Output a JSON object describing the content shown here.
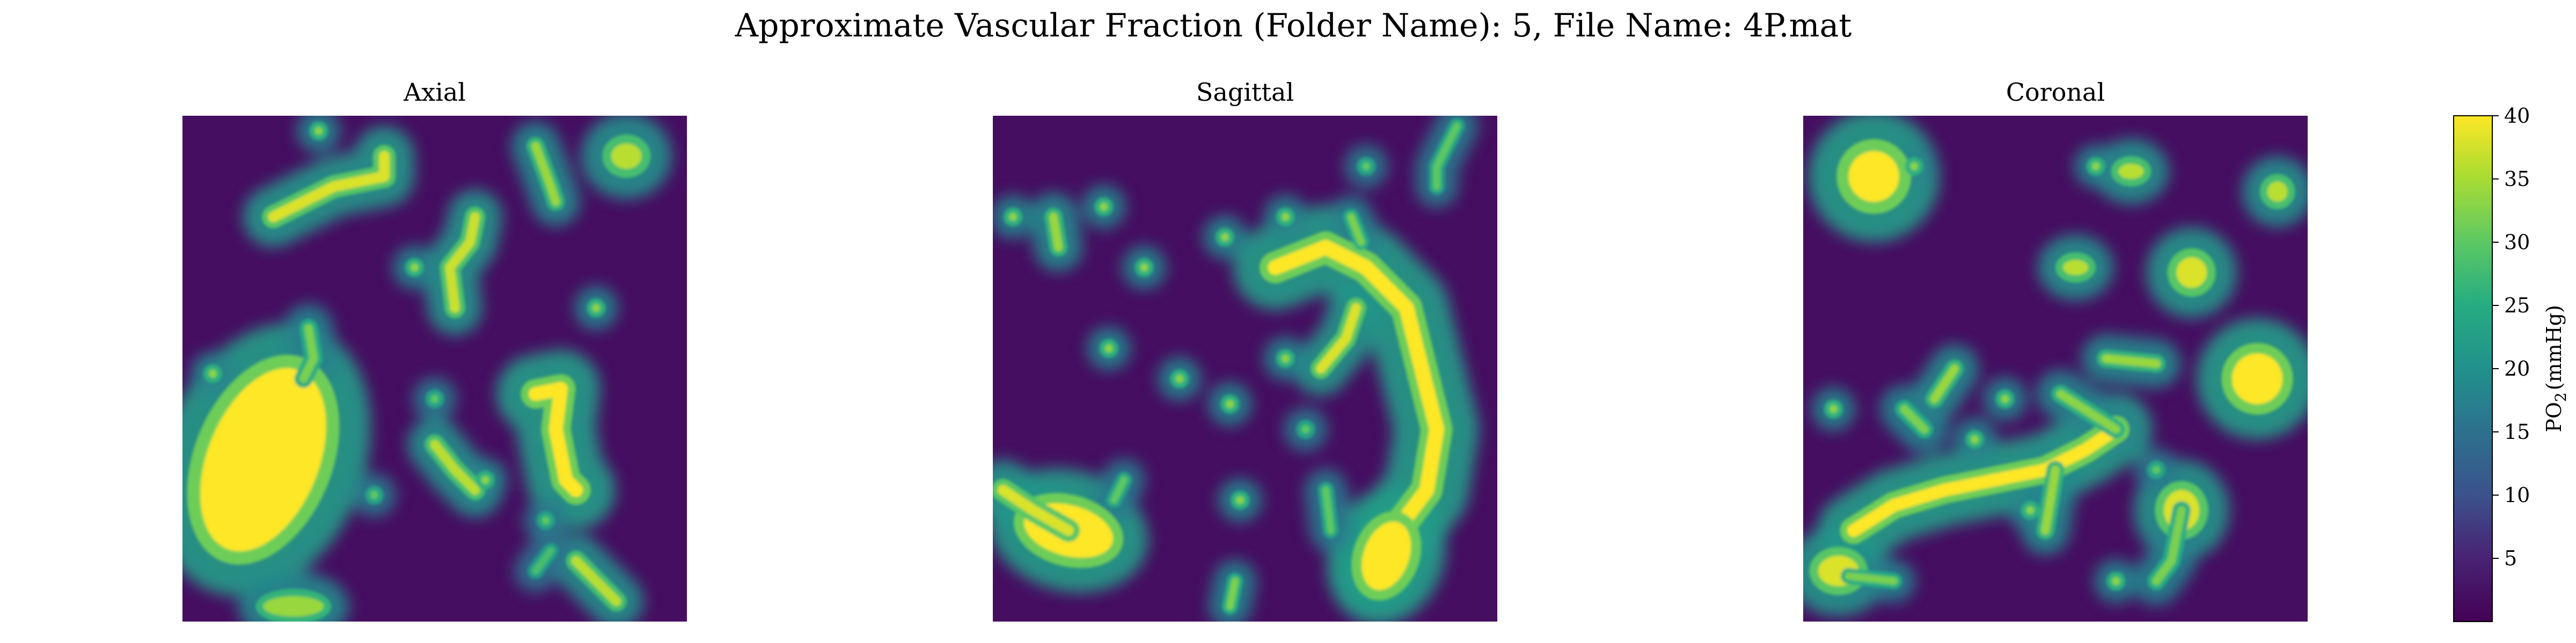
{
  "chart_data": {
    "type": "heatmap",
    "suptitle": "Approximate Vascular Fraction (Folder Name): 5, File Name: 4P.mat",
    "panels": [
      {
        "title": "Axial",
        "background": 2,
        "vessels": [
          {
            "kind": "line",
            "points": [
              [
                0.18,
                0.2
              ],
              [
                0.3,
                0.14
              ],
              [
                0.4,
                0.12
              ],
              [
                0.4,
                0.08
              ]
            ],
            "po2": 38,
            "halo": 0.05
          },
          {
            "kind": "line",
            "points": [
              [
                0.54,
                0.38
              ],
              [
                0.53,
                0.3
              ],
              [
                0.57,
                0.25
              ],
              [
                0.58,
                0.2
              ]
            ],
            "po2": 37,
            "halo": 0.045
          },
          {
            "kind": "line",
            "points": [
              [
                0.7,
                0.06
              ],
              [
                0.73,
                0.14
              ],
              [
                0.74,
                0.17
              ]
            ],
            "po2": 34,
            "halo": 0.04
          },
          {
            "kind": "blob",
            "x": 0.88,
            "y": 0.08,
            "rx": 0.03,
            "ry": 0.025,
            "po2": 36,
            "halo": 0.06
          },
          {
            "kind": "blob",
            "x": 0.16,
            "y": 0.68,
            "rx": 0.11,
            "ry": 0.19,
            "rot": 22,
            "po2": 40,
            "halo": 0.09
          },
          {
            "kind": "line",
            "points": [
              [
                0.24,
                0.52
              ],
              [
                0.26,
                0.48
              ],
              [
                0.25,
                0.42
              ]
            ],
            "po2": 32,
            "halo": 0.04
          },
          {
            "kind": "line",
            "points": [
              [
                0.7,
                0.55
              ],
              [
                0.75,
                0.54
              ],
              [
                0.74,
                0.62
              ],
              [
                0.76,
                0.72
              ],
              [
                0.78,
                0.74
              ]
            ],
            "po2": 40,
            "halo": 0.065
          },
          {
            "kind": "line",
            "points": [
              [
                0.5,
                0.65
              ],
              [
                0.54,
                0.7
              ],
              [
                0.58,
                0.74
              ]
            ],
            "po2": 36,
            "halo": 0.045
          },
          {
            "kind": "line",
            "points": [
              [
                0.78,
                0.88
              ],
              [
                0.82,
                0.92
              ],
              [
                0.86,
                0.96
              ]
            ],
            "po2": 36,
            "halo": 0.045
          },
          {
            "kind": "line",
            "points": [
              [
                0.7,
                0.9
              ],
              [
                0.73,
                0.86
              ]
            ],
            "po2": 28,
            "halo": 0.035
          },
          {
            "kind": "blob",
            "x": 0.22,
            "y": 0.97,
            "rx": 0.06,
            "ry": 0.02,
            "po2": 34,
            "halo": 0.05
          },
          {
            "kind": "dot",
            "x": 0.27,
            "y": 0.03,
            "po2": 33
          },
          {
            "kind": "dot",
            "x": 0.46,
            "y": 0.3,
            "po2": 33
          },
          {
            "kind": "dot",
            "x": 0.06,
            "y": 0.51,
            "po2": 33
          },
          {
            "kind": "dot",
            "x": 0.82,
            "y": 0.38,
            "po2": 33
          },
          {
            "kind": "dot",
            "x": 0.6,
            "y": 0.72,
            "po2": 33
          },
          {
            "kind": "dot",
            "x": 0.38,
            "y": 0.75,
            "po2": 30
          },
          {
            "kind": "dot",
            "x": 0.72,
            "y": 0.8,
            "po2": 30
          },
          {
            "kind": "dot",
            "x": 0.5,
            "y": 0.56,
            "po2": 30
          }
        ]
      },
      {
        "title": "Sagittal",
        "background": 2,
        "vessels": [
          {
            "kind": "line",
            "points": [
              [
                0.56,
                0.3
              ],
              [
                0.66,
                0.26
              ],
              [
                0.74,
                0.3
              ],
              [
                0.82,
                0.38
              ],
              [
                0.85,
                0.5
              ],
              [
                0.88,
                0.62
              ],
              [
                0.86,
                0.74
              ],
              [
                0.8,
                0.82
              ],
              [
                0.76,
                0.9
              ]
            ],
            "po2": 40,
            "halo": 0.07
          },
          {
            "kind": "blob",
            "x": 0.78,
            "y": 0.87,
            "rx": 0.045,
            "ry": 0.07,
            "rot": 20,
            "po2": 40,
            "halo": 0.07
          },
          {
            "kind": "blob",
            "x": 0.15,
            "y": 0.82,
            "rx": 0.09,
            "ry": 0.05,
            "rot": 15,
            "po2": 40,
            "halo": 0.07
          },
          {
            "kind": "line",
            "points": [
              [
                0.02,
                0.74
              ],
              [
                0.08,
                0.78
              ],
              [
                0.15,
                0.82
              ]
            ],
            "po2": 38,
            "halo": 0.05
          },
          {
            "kind": "line",
            "points": [
              [
                0.24,
                0.76
              ],
              [
                0.26,
                0.72
              ]
            ],
            "po2": 30,
            "halo": 0.035
          },
          {
            "kind": "line",
            "points": [
              [
                0.12,
                0.2
              ],
              [
                0.13,
                0.26
              ]
            ],
            "po2": 34,
            "halo": 0.04
          },
          {
            "kind": "line",
            "points": [
              [
                0.72,
                0.38
              ],
              [
                0.7,
                0.44
              ],
              [
                0.65,
                0.5
              ]
            ],
            "po2": 38,
            "halo": 0.045
          },
          {
            "kind": "line",
            "points": [
              [
                0.73,
                0.25
              ],
              [
                0.71,
                0.2
              ]
            ],
            "po2": 32,
            "halo": 0.035
          },
          {
            "kind": "line",
            "points": [
              [
                0.48,
                0.92
              ],
              [
                0.47,
                0.97
              ]
            ],
            "po2": 32,
            "halo": 0.035
          },
          {
            "kind": "line",
            "points": [
              [
                0.66,
                0.74
              ],
              [
                0.67,
                0.82
              ]
            ],
            "po2": 30,
            "halo": 0.035
          },
          {
            "kind": "line",
            "points": [
              [
                0.92,
                0.02
              ],
              [
                0.88,
                0.1
              ],
              [
                0.88,
                0.14
              ]
            ],
            "po2": 30,
            "halo": 0.035
          },
          {
            "kind": "dot",
            "x": 0.22,
            "y": 0.18,
            "po2": 33
          },
          {
            "kind": "dot",
            "x": 0.04,
            "y": 0.2,
            "po2": 33
          },
          {
            "kind": "dot",
            "x": 0.46,
            "y": 0.24,
            "po2": 33
          },
          {
            "kind": "dot",
            "x": 0.58,
            "y": 0.2,
            "po2": 33
          },
          {
            "kind": "dot",
            "x": 0.3,
            "y": 0.3,
            "po2": 33
          },
          {
            "kind": "dot",
            "x": 0.37,
            "y": 0.52,
            "po2": 33
          },
          {
            "kind": "dot",
            "x": 0.23,
            "y": 0.46,
            "po2": 33
          },
          {
            "kind": "dot",
            "x": 0.47,
            "y": 0.57,
            "po2": 33
          },
          {
            "kind": "dot",
            "x": 0.58,
            "y": 0.48,
            "po2": 33
          },
          {
            "kind": "dot",
            "x": 0.49,
            "y": 0.76,
            "po2": 33
          },
          {
            "kind": "dot",
            "x": 0.74,
            "y": 0.1,
            "po2": 30
          },
          {
            "kind": "dot",
            "x": 0.62,
            "y": 0.62,
            "po2": 30
          }
        ]
      },
      {
        "title": "Coronal",
        "background": 2,
        "vessels": [
          {
            "kind": "blob",
            "x": 0.14,
            "y": 0.12,
            "rx": 0.05,
            "ry": 0.05,
            "po2": 40,
            "halo": 0.08
          },
          {
            "kind": "line",
            "points": [
              [
                0.1,
                0.82
              ],
              [
                0.18,
                0.77
              ],
              [
                0.28,
                0.74
              ],
              [
                0.38,
                0.72
              ],
              [
                0.48,
                0.7
              ],
              [
                0.56,
                0.66
              ],
              [
                0.62,
                0.62
              ]
            ],
            "po2": 40,
            "halo": 0.06
          },
          {
            "kind": "line",
            "points": [
              [
                0.5,
                0.7
              ],
              [
                0.48,
                0.82
              ]
            ],
            "po2": 34,
            "halo": 0.04
          },
          {
            "kind": "line",
            "points": [
              [
                0.62,
                0.62
              ],
              [
                0.51,
                0.55
              ]
            ],
            "po2": 33,
            "halo": 0.04
          },
          {
            "kind": "line",
            "points": [
              [
                0.3,
                0.5
              ],
              [
                0.26,
                0.56
              ]
            ],
            "po2": 34,
            "halo": 0.04
          },
          {
            "kind": "line",
            "points": [
              [
                0.2,
                0.58
              ],
              [
                0.24,
                0.62
              ]
            ],
            "po2": 32,
            "halo": 0.04
          },
          {
            "kind": "blob",
            "x": 0.9,
            "y": 0.52,
            "rx": 0.05,
            "ry": 0.05,
            "po2": 40,
            "halo": 0.07
          },
          {
            "kind": "blob",
            "x": 0.77,
            "y": 0.31,
            "rx": 0.03,
            "ry": 0.03,
            "po2": 38,
            "halo": 0.06
          },
          {
            "kind": "blob",
            "x": 0.54,
            "y": 0.3,
            "rx": 0.025,
            "ry": 0.015,
            "po2": 36,
            "halo": 0.05
          },
          {
            "kind": "blob",
            "x": 0.65,
            "y": 0.11,
            "rx": 0.025,
            "ry": 0.015,
            "po2": 36,
            "halo": 0.05
          },
          {
            "kind": "blob",
            "x": 0.75,
            "y": 0.78,
            "rx": 0.035,
            "ry": 0.04,
            "po2": 38,
            "halo": 0.06
          },
          {
            "kind": "line",
            "points": [
              [
                0.75,
                0.78
              ],
              [
                0.73,
                0.88
              ],
              [
                0.7,
                0.92
              ]
            ],
            "po2": 32,
            "halo": 0.04
          },
          {
            "kind": "blob",
            "x": 0.07,
            "y": 0.9,
            "rx": 0.04,
            "ry": 0.03,
            "po2": 38,
            "halo": 0.06
          },
          {
            "kind": "line",
            "points": [
              [
                0.09,
                0.91
              ],
              [
                0.18,
                0.92
              ]
            ],
            "po2": 32,
            "halo": 0.035
          },
          {
            "kind": "line",
            "points": [
              [
                0.6,
                0.48
              ],
              [
                0.7,
                0.49
              ]
            ],
            "po2": 34,
            "halo": 0.04
          },
          {
            "kind": "blob",
            "x": 0.94,
            "y": 0.15,
            "rx": 0.02,
            "ry": 0.02,
            "po2": 36,
            "halo": 0.05
          },
          {
            "kind": "dot",
            "x": 0.06,
            "y": 0.58,
            "po2": 33
          },
          {
            "kind": "dot",
            "x": 0.34,
            "y": 0.64,
            "po2": 33
          },
          {
            "kind": "dot",
            "x": 0.4,
            "y": 0.56,
            "po2": 33
          },
          {
            "kind": "dot",
            "x": 0.58,
            "y": 0.1,
            "po2": 33
          },
          {
            "kind": "dot",
            "x": 0.22,
            "y": 0.1,
            "po2": 33
          },
          {
            "kind": "dot",
            "x": 0.62,
            "y": 0.92,
            "po2": 33
          },
          {
            "kind": "dot",
            "x": 0.45,
            "y": 0.78,
            "po2": 33
          },
          {
            "kind": "dot",
            "x": 0.7,
            "y": 0.7,
            "po2": 30
          }
        ]
      }
    ],
    "colorbar": {
      "label_prefix": "PO",
      "label_subscript": "2",
      "label_suffix": "(mmHg)",
      "colormap": "viridis",
      "range": [
        0,
        40
      ],
      "ticks": [
        5,
        10,
        15,
        20,
        25,
        30,
        35,
        40
      ]
    }
  }
}
